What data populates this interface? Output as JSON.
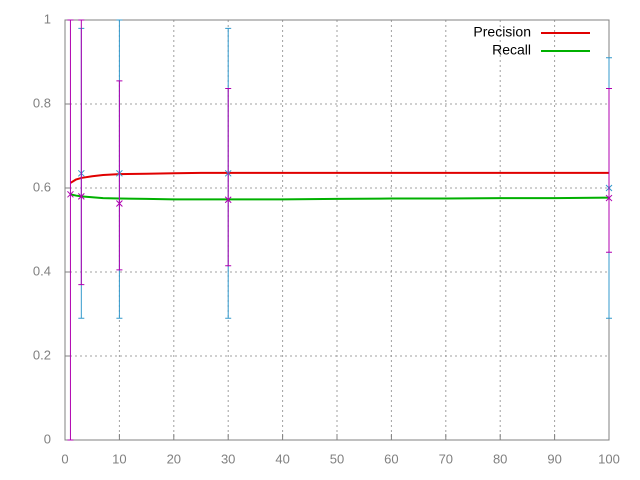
{
  "chart_data": {
    "type": "line",
    "x": [
      1,
      2,
      3,
      5,
      7,
      10,
      15,
      20,
      25,
      30,
      40,
      50,
      60,
      70,
      80,
      90,
      100
    ],
    "series": [
      {
        "name": "Precision",
        "color": "#e00000",
        "values": [
          0.612,
          0.62,
          0.624,
          0.628,
          0.631,
          0.633,
          0.634,
          0.635,
          0.636,
          0.636,
          0.636,
          0.636,
          0.636,
          0.636,
          0.636,
          0.636,
          0.636
        ]
      },
      {
        "name": "Recall",
        "color": "#00b000",
        "values": [
          0.585,
          0.582,
          0.58,
          0.578,
          0.576,
          0.575,
          0.574,
          0.573,
          0.573,
          0.573,
          0.573,
          0.574,
          0.575,
          0.575,
          0.576,
          0.576,
          0.577
        ]
      }
    ],
    "errorbars": [
      {
        "color": "#3399cc",
        "x": [
          3,
          10,
          30,
          100
        ],
        "values": [
          0.635,
          0.635,
          0.635,
          0.6
        ],
        "low": [
          0.29,
          0.29,
          0.29,
          0.29
        ],
        "high": [
          0.98,
          1.0,
          0.98,
          0.91
        ]
      },
      {
        "color": "#b000b0",
        "x": [
          1,
          3,
          10,
          30,
          100
        ],
        "values": [
          0.585,
          0.58,
          0.563,
          0.572,
          0.576
        ],
        "low": [
          0,
          0.37,
          0.405,
          0.415,
          0.447
        ],
        "high": [
          1,
          1,
          0.855,
          0.837,
          0.837
        ]
      }
    ],
    "xlim": [
      0,
      100
    ],
    "xticks": [
      0,
      10,
      20,
      30,
      40,
      50,
      60,
      70,
      80,
      90,
      100
    ],
    "ylim": [
      0,
      1
    ],
    "yticks": [
      0,
      0.2,
      0.4,
      0.6,
      0.8,
      1
    ],
    "grid": true,
    "legend": "top-right"
  }
}
